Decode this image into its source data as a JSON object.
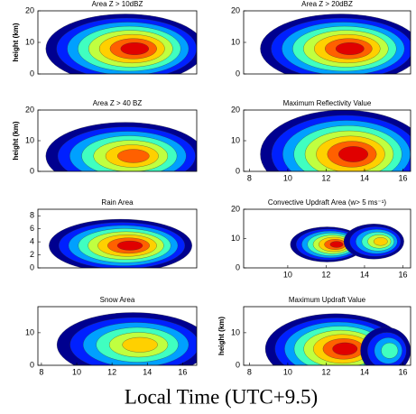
{
  "chart_data": [
    {
      "type": "contour",
      "title": "Area Z > 10dBZ",
      "ylabel": "height (km)",
      "xlim": [
        7.8,
        16.8
      ],
      "ylim": [
        0,
        20
      ],
      "yticks": [
        0,
        10,
        20
      ]
    },
    {
      "type": "contour",
      "title": "Area Z > 20dBZ",
      "xlim": [
        7.7,
        16.4
      ],
      "ylim": [
        0,
        20
      ],
      "yticks": [
        0,
        10,
        20
      ]
    },
    {
      "type": "contour",
      "title": "Area Z > 40 BZ",
      "ylabel": "height (km)",
      "xlim": [
        7.8,
        16.8
      ],
      "ylim": [
        0,
        20
      ],
      "yticks": [
        0,
        10,
        20
      ]
    },
    {
      "type": "contour",
      "title": "Maximum Reflectivity Value",
      "xlim": [
        7.7,
        16.4
      ],
      "ylim": [
        0,
        20
      ],
      "yticks": [
        0,
        10,
        20
      ],
      "xticks": [
        8,
        10,
        12,
        14,
        16
      ]
    },
    {
      "type": "contour",
      "title": "Rain Area",
      "xlim": [
        7.8,
        16.8
      ],
      "ylim": [
        0,
        9
      ],
      "yticks": [
        0,
        2,
        4,
        6,
        8
      ]
    },
    {
      "type": "contour",
      "title": "Convective Updraft Area (w> 5 ms⁻¹)",
      "xlim": [
        7.7,
        16.4
      ],
      "ylim": [
        0,
        20
      ],
      "yticks": [
        0,
        10,
        20
      ],
      "xticks": [
        10,
        12,
        14,
        16
      ]
    },
    {
      "type": "contour",
      "title": "Snow Area",
      "xlim": [
        7.8,
        16.8
      ],
      "ylim": [
        0,
        18
      ],
      "yticks": [
        0,
        10
      ],
      "xticks": [
        8,
        10,
        12,
        14,
        16
      ]
    },
    {
      "type": "contour",
      "title": "Maximum Updraft Value",
      "ylabel": "height (km)",
      "xlim": [
        7.7,
        16.4
      ],
      "ylim": [
        0,
        18
      ],
      "yticks": [
        0,
        10
      ],
      "xticks": [
        8,
        10,
        12,
        14,
        16
      ]
    }
  ],
  "xlabel": "Local Time (UTC+9.5)"
}
